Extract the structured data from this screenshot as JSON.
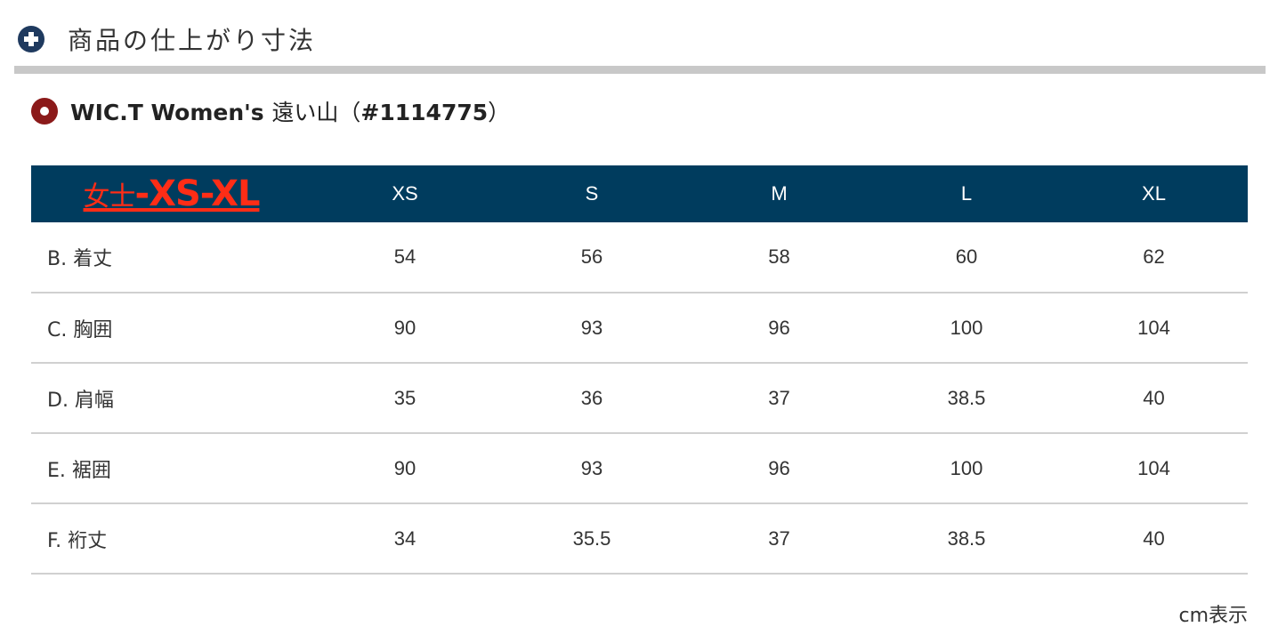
{
  "header": {
    "title": "商品の仕上がり寸法",
    "icon": "plus-circle-icon"
  },
  "product": {
    "title_bold": "WIC.T Women's",
    "title_jp": "遠い山（",
    "product_code": "#1114775",
    "title_close": "）",
    "icon": "ring-icon"
  },
  "table": {
    "corner_prefix": "女士",
    "corner_range": "-XS-XL",
    "sizes": [
      "XS",
      "S",
      "M",
      "L",
      "XL"
    ],
    "rows": [
      {
        "label": "B. 着丈",
        "values": [
          "54",
          "56",
          "58",
          "60",
          "62"
        ]
      },
      {
        "label": "C. 胸囲",
        "values": [
          "90",
          "93",
          "96",
          "100",
          "104"
        ]
      },
      {
        "label": "D. 肩幅",
        "values": [
          "35",
          "36",
          "37",
          "38.5",
          "40"
        ]
      },
      {
        "label": "E. 裾囲",
        "values": [
          "90",
          "93",
          "96",
          "100",
          "104"
        ]
      },
      {
        "label": "F. 裄丈",
        "values": [
          "34",
          "35.5",
          "37",
          "38.5",
          "40"
        ]
      }
    ]
  },
  "unit_note": "cm表示",
  "colors": {
    "header_bg": "#003c5e",
    "corner_label": "#ff2d16",
    "plus_icon": "#1f3a5f",
    "ring_icon": "#8b1a1a"
  }
}
